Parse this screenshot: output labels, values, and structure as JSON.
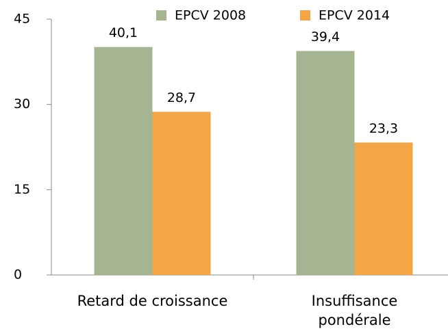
{
  "chart_data": {
    "type": "bar",
    "categories": [
      "Retard de croissance",
      "Insuffisance pondérale"
    ],
    "series": [
      {
        "name": "EPCV 2008",
        "color": "#a5b592",
        "values": [
          40.1,
          39.4
        ],
        "value_labels": [
          "40,1",
          "39,4"
        ]
      },
      {
        "name": "EPCV 2014",
        "color": "#f4a646",
        "values": [
          28.7,
          23.3
        ],
        "value_labels": [
          "28,7",
          "23,3"
        ]
      }
    ],
    "ylim": [
      0,
      45
    ],
    "yticks": [
      0,
      15,
      30,
      45
    ],
    "legend": "top",
    "grid": false
  }
}
